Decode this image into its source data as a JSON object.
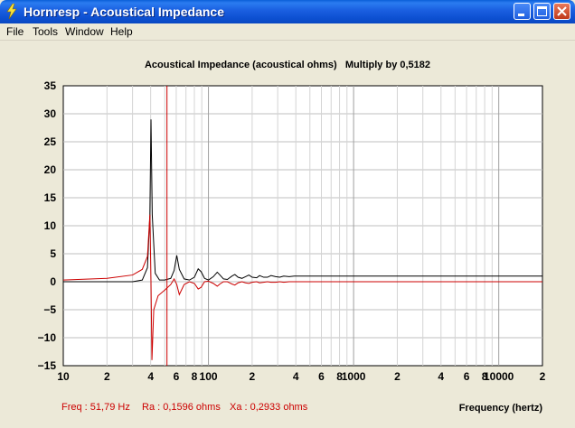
{
  "window": {
    "title": "Hornresp - Acoustical Impedance",
    "icon": "lightning-bolt-icon",
    "controls": {
      "minimize": "minimize-icon",
      "maximize": "maximize-icon",
      "close": "close-icon"
    }
  },
  "menu": {
    "items": [
      {
        "label": "File"
      },
      {
        "label": "Tools"
      },
      {
        "label": "Window"
      },
      {
        "label": "Help"
      }
    ]
  },
  "chart_data": {
    "type": "line",
    "title": "Acoustical Impedance (acoustical ohms)   Multiply by 0,5182",
    "xlabel": "Frequency (hertz)",
    "ylabel": "",
    "xscale": "log",
    "xlim": [
      10,
      20000
    ],
    "ylim": [
      -15,
      35
    ],
    "y_ticks": [
      35,
      30,
      25,
      20,
      15,
      10,
      5,
      0,
      -5,
      -10,
      -15
    ],
    "x_tick_labels": [
      {
        "x": 10,
        "label": "10"
      },
      {
        "x": 20,
        "label": "2"
      },
      {
        "x": 40,
        "label": "4"
      },
      {
        "x": 60,
        "label": "6"
      },
      {
        "x": 80,
        "label": "8"
      },
      {
        "x": 100,
        "label": "100"
      },
      {
        "x": 200,
        "label": "2"
      },
      {
        "x": 400,
        "label": "4"
      },
      {
        "x": 600,
        "label": "6"
      },
      {
        "x": 800,
        "label": "8"
      },
      {
        "x": 1000,
        "label": "1000"
      },
      {
        "x": 2000,
        "label": "2"
      },
      {
        "x": 4000,
        "label": "4"
      },
      {
        "x": 6000,
        "label": "6"
      },
      {
        "x": 8000,
        "label": "8"
      },
      {
        "x": 10000,
        "label": "10000"
      },
      {
        "x": 20000,
        "label": "2"
      }
    ],
    "grid": true,
    "cursor_x": 51.79,
    "series": [
      {
        "color": "#000000",
        "x": [
          10,
          20,
          30,
          35,
          38,
          39.5,
          40.2,
          41,
          43,
          46,
          50,
          55,
          58,
          60.5,
          63,
          68,
          74,
          80,
          85,
          89,
          94,
          100,
          108,
          115,
          120,
          127,
          135,
          145,
          152,
          160,
          170,
          180,
          190,
          200,
          215,
          225,
          240,
          255,
          270,
          290,
          310,
          330,
          360,
          390,
          420,
          460,
          500,
          560,
          620,
          700,
          800,
          1000,
          2000,
          5000,
          10000,
          20000
        ],
        "y": [
          0,
          0,
          0,
          0.3,
          2.5,
          12,
          29,
          12,
          1.5,
          0.3,
          0.3,
          0.6,
          2,
          4.7,
          2.2,
          0.5,
          0.3,
          0.8,
          2.3,
          1.8,
          0.6,
          0.3,
          0.9,
          1.7,
          1.2,
          0.5,
          0.4,
          1,
          1.3,
          0.8,
          0.6,
          0.9,
          1.2,
          0.8,
          0.7,
          1.1,
          0.8,
          0.8,
          1.1,
          0.9,
          0.8,
          1,
          0.9,
          1,
          1,
          1,
          1,
          1,
          1,
          1,
          1,
          1,
          1,
          1,
          1,
          1
        ]
      },
      {
        "color": "#cc0000",
        "x": [
          10,
          20,
          30,
          35,
          38,
          39.5,
          40.2,
          40.8,
          42,
          45,
          50,
          55,
          58,
          60.5,
          63,
          68,
          74,
          80,
          85,
          89,
          94,
          100,
          108,
          115,
          120,
          127,
          135,
          145,
          152,
          160,
          170,
          180,
          190,
          200,
          215,
          225,
          240,
          255,
          270,
          290,
          310,
          330,
          360,
          390,
          420,
          460,
          500,
          560,
          620,
          700,
          800,
          1000,
          2000,
          5000,
          10000,
          20000
        ],
        "y": [
          0.3,
          0.6,
          1.2,
          2.2,
          4.5,
          12,
          0,
          -14,
          -5,
          -2.5,
          -1.5,
          -0.5,
          0.5,
          -0.5,
          -2.3,
          -0.5,
          0,
          -0.3,
          -1.3,
          -1,
          0,
          0.1,
          -0.3,
          -0.8,
          -0.4,
          0,
          0,
          -0.4,
          -0.6,
          -0.2,
          0,
          -0.2,
          -0.3,
          -0.1,
          0,
          -0.2,
          -0.1,
          0,
          -0.1,
          -0.1,
          0,
          -0.1,
          0,
          0,
          0,
          0,
          0,
          0,
          0,
          0,
          0,
          0,
          0,
          0,
          0,
          0
        ]
      }
    ]
  },
  "status": {
    "freq": "Freq : 51,79 Hz",
    "ra": "Ra : 0,1596 ohms",
    "xa": "Xa : 0,2933 ohms",
    "color": "#cc0000"
  }
}
